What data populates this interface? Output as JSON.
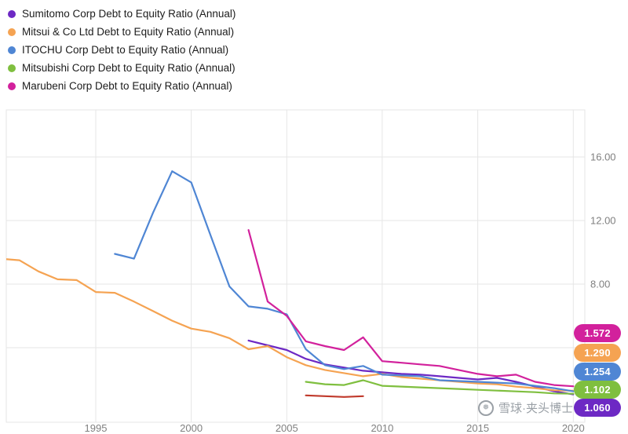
{
  "watermark": {
    "text": "雪球·夹头博士",
    "icon": "snowball-logo"
  },
  "right_labels": [
    {
      "value": "1.572",
      "color": "#D2219C",
      "series_id": "marubeni"
    },
    {
      "value": "1.290",
      "color": "#F5A352",
      "series_id": "mitsui"
    },
    {
      "value": "1.254",
      "color": "#4F86D4",
      "series_id": "itochu"
    },
    {
      "value": "1.102",
      "color": "#7FBF3F",
      "series_id": "mitsubishi"
    },
    {
      "value": "1.060",
      "color": "#6D29C4",
      "series_id": "sumitomo"
    }
  ],
  "chart_data": {
    "type": "line",
    "title": "",
    "xlabel": "",
    "ylabel": "",
    "grid": true,
    "grid_color": "#E6E6E6",
    "tick_color": "#808080",
    "legend_position": "top-left",
    "xlim": [
      1990.3,
      2020.7
    ],
    "ylim": [
      0,
      19
    ],
    "y_gridlines": [
      16,
      12,
      8,
      4
    ],
    "y_ticks": [
      {
        "value": 16,
        "label": "16.00"
      },
      {
        "value": 12,
        "label": "12.00"
      },
      {
        "value": 8,
        "label": "8.00"
      }
    ],
    "x_ticks": [
      {
        "value": 1995,
        "label": "1995"
      },
      {
        "value": 2000,
        "label": "2000"
      },
      {
        "value": 2005,
        "label": "2005"
      },
      {
        "value": 2010,
        "label": "2010"
      },
      {
        "value": 2015,
        "label": "2015"
      },
      {
        "value": 2020,
        "label": "2020"
      }
    ],
    "series": [
      {
        "id": "sumitomo",
        "name": "Sumitomo Corp Debt to Equity Ratio (Annual)",
        "color": "#6D29C4",
        "end_label": "1.060",
        "points": [
          [
            2003,
            4.45
          ],
          [
            2004,
            4.15
          ],
          [
            2005,
            3.85
          ],
          [
            2006,
            3.3
          ],
          [
            2007,
            2.95
          ],
          [
            2008,
            2.75
          ],
          [
            2009,
            2.55
          ],
          [
            2010,
            2.45
          ],
          [
            2011,
            2.35
          ],
          [
            2012,
            2.3
          ],
          [
            2013,
            2.2
          ],
          [
            2014,
            2.1
          ],
          [
            2015,
            2.0
          ],
          [
            2016,
            2.1
          ],
          [
            2017,
            1.85
          ],
          [
            2018,
            1.55
          ],
          [
            2019,
            1.25
          ],
          [
            2020,
            1.06
          ]
        ]
      },
      {
        "id": "mitsui",
        "name": "Mitsui & Co Ltd Debt to Equity Ratio (Annual)",
        "color": "#F5A352",
        "end_label": "1.290",
        "points": [
          [
            1990,
            9.6
          ],
          [
            1991,
            9.5
          ],
          [
            1992,
            8.8
          ],
          [
            1993,
            8.3
          ],
          [
            1994,
            8.25
          ],
          [
            1995,
            7.5
          ],
          [
            1996,
            7.45
          ],
          [
            1997,
            6.9
          ],
          [
            1998,
            6.3
          ],
          [
            1999,
            5.7
          ],
          [
            2000,
            5.2
          ],
          [
            2001,
            5.0
          ],
          [
            2002,
            4.6
          ],
          [
            2003,
            3.9
          ],
          [
            2004,
            4.1
          ],
          [
            2005,
            3.4
          ],
          [
            2006,
            2.9
          ],
          [
            2007,
            2.6
          ],
          [
            2008,
            2.4
          ],
          [
            2009,
            2.2
          ],
          [
            2010,
            2.35
          ],
          [
            2011,
            2.15
          ],
          [
            2012,
            2.05
          ],
          [
            2013,
            1.95
          ],
          [
            2014,
            1.85
          ],
          [
            2015,
            1.75
          ],
          [
            2016,
            1.7
          ],
          [
            2017,
            1.55
          ],
          [
            2018,
            1.45
          ],
          [
            2019,
            1.32
          ],
          [
            2020,
            1.29
          ]
        ]
      },
      {
        "id": "itochu",
        "name": "ITOCHU Corp Debt to Equity Ratio (Annual)",
        "color": "#4F86D4",
        "end_label": "1.254",
        "points": [
          [
            1996,
            9.9
          ],
          [
            1997,
            9.6
          ],
          [
            1998,
            12.5
          ],
          [
            1999,
            15.1
          ],
          [
            2000,
            14.4
          ],
          [
            2001,
            11.1
          ],
          [
            2002,
            7.85
          ],
          [
            2003,
            6.6
          ],
          [
            2004,
            6.45
          ],
          [
            2005,
            6.1
          ],
          [
            2006,
            3.9
          ],
          [
            2007,
            2.9
          ],
          [
            2008,
            2.65
          ],
          [
            2009,
            2.85
          ],
          [
            2010,
            2.3
          ],
          [
            2011,
            2.25
          ],
          [
            2012,
            2.2
          ],
          [
            2013,
            1.95
          ],
          [
            2014,
            1.9
          ],
          [
            2015,
            1.85
          ],
          [
            2016,
            1.8
          ],
          [
            2017,
            1.75
          ],
          [
            2018,
            1.6
          ],
          [
            2019,
            1.45
          ],
          [
            2020,
            1.254
          ]
        ]
      },
      {
        "id": "mitsubishi",
        "name": "Mitsubishi Corp Debt to Equity Ratio (Annual)",
        "color": "#7FBF3F",
        "end_label": "1.102",
        "points": [
          [
            2006,
            1.85
          ],
          [
            2007,
            1.7
          ],
          [
            2008,
            1.65
          ],
          [
            2009,
            1.95
          ],
          [
            2010,
            1.6
          ],
          [
            2011,
            1.55
          ],
          [
            2012,
            1.5
          ],
          [
            2013,
            1.45
          ],
          [
            2014,
            1.4
          ],
          [
            2015,
            1.35
          ],
          [
            2016,
            1.3
          ],
          [
            2017,
            1.25
          ],
          [
            2018,
            1.2
          ],
          [
            2019,
            1.12
          ],
          [
            2020,
            1.102
          ]
        ]
      },
      {
        "id": "marubeni",
        "name": "Marubeni Corp Debt to Equity Ratio (Annual)",
        "color": "#D2219C",
        "end_label": "1.572",
        "points": [
          [
            2003,
            11.4
          ],
          [
            2004,
            6.9
          ],
          [
            2005,
            6.0
          ],
          [
            2006,
            4.4
          ],
          [
            2007,
            4.1
          ],
          [
            2008,
            3.85
          ],
          [
            2009,
            4.65
          ],
          [
            2010,
            3.15
          ],
          [
            2011,
            3.05
          ],
          [
            2012,
            2.95
          ],
          [
            2013,
            2.85
          ],
          [
            2014,
            2.6
          ],
          [
            2015,
            2.35
          ],
          [
            2016,
            2.2
          ],
          [
            2017,
            2.3
          ],
          [
            2018,
            1.85
          ],
          [
            2019,
            1.65
          ],
          [
            2020,
            1.572
          ]
        ]
      },
      {
        "id": "unlabeled-red",
        "name": "",
        "color": "#C0392B",
        "end_label": "",
        "points": [
          [
            2006,
            1.0
          ],
          [
            2007,
            0.95
          ],
          [
            2008,
            0.9
          ],
          [
            2009,
            0.95
          ]
        ]
      }
    ]
  }
}
